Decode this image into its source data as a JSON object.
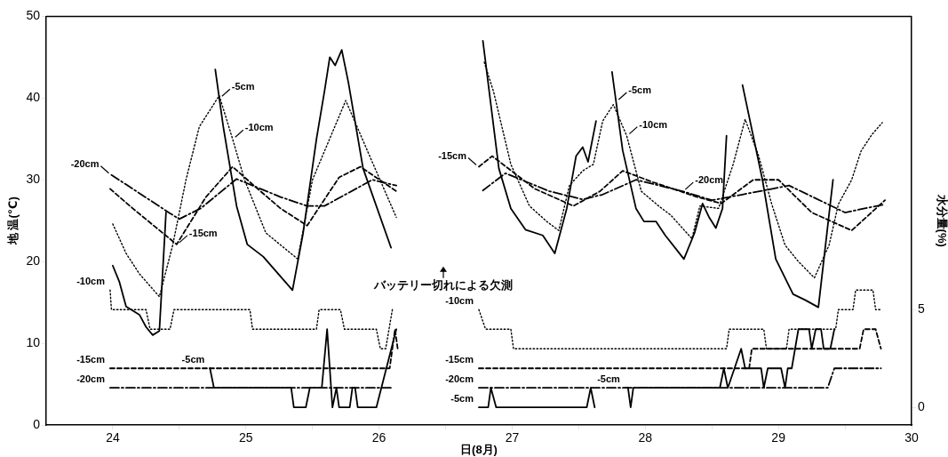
{
  "chart_data": {
    "type": "line",
    "xlabel": "日(8月)",
    "ylabel": "地 温(℃)",
    "y2label": "水分量(%)",
    "xlim": [
      23.5,
      30
    ],
    "xticks": [
      24,
      {
        "value": 24.5,
        "label": null
      },
      25,
      {
        "value": 25.5,
        "label": null
      },
      26,
      {
        "value": 26.5,
        "label": null
      },
      27,
      {
        "value": 27.5,
        "label": null
      },
      28,
      {
        "value": 28.5,
        "label": null
      },
      29,
      {
        "value": 29.5,
        "label": null
      },
      30
    ],
    "ylim": [
      0,
      50
    ],
    "yticks": [
      0,
      10,
      20,
      30,
      40,
      50
    ],
    "y2lim": [
      -0.9,
      20
    ],
    "y2ticks": [
      0,
      5
    ],
    "grid": false,
    "legend": false,
    "series": [
      {
        "color": "#000000",
        "line_style": "solid",
        "x": [
          24.0,
          24.05,
          24.1,
          24.2,
          24.25,
          24.3,
          24.35,
          24.4,
          24.6,
          24.77,
          24.8,
          24.83,
          24.93,
          25.01,
          25.13,
          25.35,
          25.43,
          25.53,
          25.59,
          25.63,
          25.67,
          25.72,
          25.77,
          25.88,
          26.09,
          26.45,
          26.78,
          26.9,
          26.99,
          27.1,
          27.23,
          27.32,
          27.41,
          27.48,
          27.53,
          27.57,
          27.63,
          27.7,
          27.75,
          27.78,
          27.83,
          27.93,
          27.99,
          28.08,
          28.15,
          28.29,
          28.37,
          28.43,
          28.48,
          28.53,
          28.58,
          28.61,
          28.67,
          28.73,
          28.88,
          28.98,
          29.11,
          29.2,
          29.3,
          29.41
        ],
        "values": [
          19.5,
          17.5,
          14.5,
          13.5,
          12,
          11,
          11.5,
          26,
          null,
          43.5,
          40,
          36.5,
          26.8,
          22.1,
          20.6,
          16.5,
          23.5,
          35,
          40.8,
          45,
          44,
          45.9,
          41.9,
          31.4,
          21.7,
          null,
          47,
          31.4,
          26.5,
          23.9,
          23.2,
          21,
          26.5,
          32.9,
          34,
          32.2,
          37.2,
          null,
          43.2,
          39.6,
          33.6,
          26.5,
          24.9,
          24.9,
          23.2,
          20.3,
          23.5,
          27.1,
          25.4,
          24.1,
          26.5,
          35.4,
          null,
          41.6,
          30,
          20.3,
          16,
          15.3,
          14.4,
          30
        ]
      },
      {
        "color": "#000000",
        "line_style": "dotted",
        "x": [
          24.0,
          24.1,
          24.2,
          24.35,
          24.45,
          24.55,
          24.65,
          24.8,
          24.9,
          24.99,
          25.15,
          25.39,
          25.5,
          25.75,
          25.93,
          26.13,
          26.45,
          26.79,
          26.86,
          26.99,
          27.13,
          27.26,
          27.35,
          27.43,
          27.53,
          27.61,
          27.68,
          27.76,
          27.86,
          27.97,
          28.1,
          28.19,
          28.35,
          28.41,
          28.55,
          28.66,
          28.75,
          28.85,
          28.95,
          29.05,
          29.15,
          29.27,
          29.38,
          29.45,
          29.55,
          29.62,
          29.7,
          29.78
        ],
        "values": [
          24.6,
          21,
          18.5,
          15.7,
          22,
          30,
          36.5,
          40.3,
          35,
          30,
          23.5,
          20.3,
          30,
          39.7,
          32.9,
          25.4,
          null,
          44.4,
          40.8,
          31.9,
          26.8,
          24.9,
          23.8,
          29.3,
          31.1,
          31.9,
          37.2,
          39.2,
          35.4,
          28.6,
          26.8,
          25.7,
          22.8,
          26.8,
          26.5,
          31.9,
          37.4,
          33,
          27,
          22,
          20,
          18,
          22,
          27,
          30,
          33.5,
          35.5,
          37
        ]
      },
      {
        "color": "#000000",
        "line_style": "dashdot",
        "x": [
          23.99,
          24.43,
          24.5,
          24.66,
          24.93,
          25.26,
          25.46,
          25.59,
          25.95,
          26.13,
          26.45,
          26.78,
          26.95,
          27.28,
          27.53,
          27.68,
          27.93,
          28.28,
          28.5,
          28.73,
          29.08,
          29.5,
          29.8
        ],
        "values": [
          30.6,
          25.9,
          25.2,
          26.5,
          30.1,
          27.9,
          26.8,
          26.8,
          30,
          29.3,
          null,
          28.7,
          30.8,
          28.6,
          27.6,
          28.2,
          30,
          28.6,
          27.5,
          28.2,
          29.3,
          26,
          27
        ]
      },
      {
        "color": "#000000",
        "line_style": "dashed",
        "x": [
          23.98,
          24.15,
          24.48,
          24.7,
          24.9,
          25.06,
          25.26,
          25.46,
          25.7,
          25.86,
          26.13,
          26.45,
          26.75,
          26.85,
          27.17,
          27.46,
          27.66,
          27.83,
          28.06,
          28.39,
          28.57,
          28.81,
          29.0,
          29.25,
          29.55,
          29.8
        ],
        "values": [
          28.9,
          26.5,
          22.1,
          27.9,
          31.6,
          29.3,
          26.5,
          24.4,
          30.3,
          31.6,
          28.6,
          null,
          31.6,
          32.9,
          28.9,
          26.8,
          28.6,
          31.1,
          29.7,
          27.9,
          27.1,
          30,
          30,
          26,
          23.8,
          27.5
        ]
      },
      {
        "name": "-10cm",
        "color": "#000000",
        "line_style": "dotted",
        "axis": "y2",
        "x": [
          23.98,
          23.99,
          24.25,
          24.28,
          24.43,
          24.46,
          25.03,
          25.05,
          25.53,
          25.55,
          25.71,
          25.74,
          25.98,
          26.01,
          26.05,
          26.1,
          26.45,
          26.75,
          26.8,
          26.99,
          27.01,
          28.61,
          28.63,
          28.89,
          28.91,
          29.06,
          29.08,
          29.43,
          29.45,
          29.56,
          29.58,
          29.71,
          29.73,
          29.77
        ],
        "values": [
          6,
          5,
          5,
          4,
          4,
          5,
          5,
          4,
          4,
          5,
          5,
          4,
          4,
          3,
          3,
          5,
          null,
          5,
          4,
          4,
          3,
          3,
          4,
          4,
          3,
          3,
          4,
          4,
          5,
          5,
          6,
          6,
          5,
          5
        ]
      },
      {
        "name": "-15cm",
        "color": "#000000",
        "line_style": "dashed",
        "axis": "y2",
        "x": [
          23.98,
          26.08,
          26.12,
          26.14,
          26.45,
          26.75,
          28.78,
          28.8,
          29.61,
          29.64,
          29.73,
          29.77
        ],
        "values": [
          2,
          2,
          4,
          3,
          null,
          2,
          2,
          3,
          3,
          4,
          4,
          3
        ]
      },
      {
        "name": "-20cm",
        "color": "#000000",
        "line_style": "dashdot",
        "axis": "y2",
        "x": [
          23.98,
          26.1,
          26.45,
          26.75,
          29.37,
          29.42,
          29.77
        ],
        "values": [
          1,
          1,
          null,
          1,
          1,
          2,
          2
        ]
      },
      {
        "name": "-5cm",
        "color": "#000000",
        "line_style": "solid",
        "axis": "y2",
        "x": [
          24.73,
          24.76,
          25.34,
          25.36,
          25.45,
          25.48,
          25.57,
          25.61,
          25.65,
          25.68,
          25.7,
          25.78,
          25.8,
          25.82,
          25.84,
          25.98,
          26.13,
          26.45,
          26.75,
          26.82,
          26.84,
          26.88,
          27.56,
          27.59,
          27.62,
          27.75,
          27.85,
          27.87,
          27.89,
          27.91,
          28.56,
          28.59,
          28.62,
          28.72,
          28.75,
          28.87,
          28.89,
          28.92,
          29.02,
          29.05,
          29.07,
          29.1,
          29.15,
          29.23,
          29.25,
          29.28,
          29.32,
          29.34,
          29.39,
          29.42
        ],
        "values": [
          2,
          1,
          1,
          0,
          0,
          1,
          1,
          4,
          0,
          1,
          0,
          0,
          1,
          1,
          0,
          0,
          4,
          null,
          0,
          0,
          1,
          0,
          0,
          1,
          0,
          null,
          1,
          1,
          0,
          1,
          1,
          2,
          1,
          3,
          2,
          2,
          1,
          2,
          2,
          1,
          2,
          2,
          4,
          4,
          3,
          4,
          4,
          3,
          3,
          4
        ]
      }
    ],
    "annotations": [
      {
        "text": "-5cm",
        "x": 24.8,
        "y": 40
      },
      {
        "text": "-10cm",
        "x": 24.9,
        "y": 35
      },
      {
        "text": "-20cm",
        "x": 23.99,
        "y": 30.6
      },
      {
        "text": "-15cm",
        "x": 24.48,
        "y": 22.1
      },
      {
        "text": "-15cm",
        "x": 26.75,
        "y": 31.6
      },
      {
        "text": "-5cm",
        "x": 27.78,
        "y": 39.6
      },
      {
        "text": "-10cm",
        "x": 27.86,
        "y": 35.4
      },
      {
        "text": "-20cm",
        "x": 28.28,
        "y": 28.6
      },
      "バッテリー切れによる欠測"
    ]
  }
}
